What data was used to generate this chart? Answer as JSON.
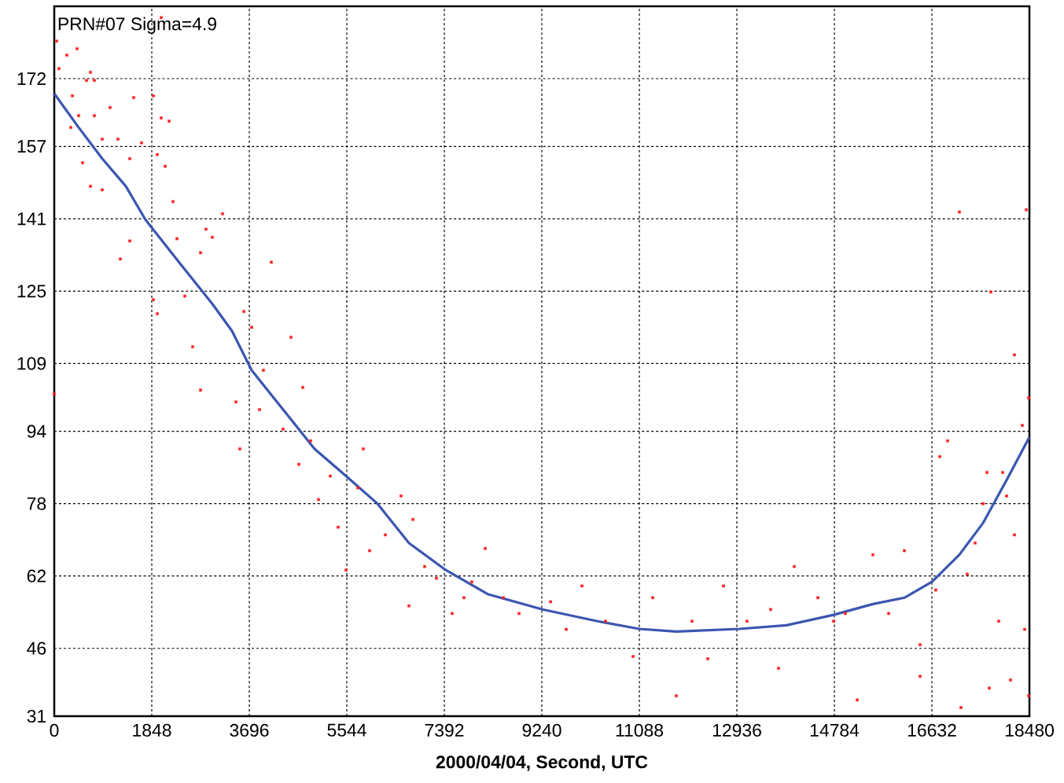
{
  "chart_data": {
    "type": "scatter",
    "xlabel": "2000/04/04, Second, UTC",
    "annotations": [
      "PRN#07  Sigma=4.9"
    ],
    "xlim": [
      0,
      18480
    ],
    "xticks": [
      0,
      1848,
      3696,
      5544,
      7392,
      9240,
      11088,
      12936,
      14784,
      16632,
      18480
    ],
    "ylim": [
      31,
      188
    ],
    "yticks": [
      31,
      46,
      62,
      78,
      94,
      109,
      125,
      141,
      157,
      172
    ],
    "grid": true,
    "series": [
      {
        "marker": "square",
        "color": "#ff2020",
        "x": [
          45,
          89,
          238,
          432,
          611,
          760,
          343,
          462,
          760,
          1058,
          1505,
          1878,
          2027,
          2176,
          1952,
          2101,
          537,
          686,
          909,
          1207,
          1431,
          1654,
          313,
          909,
          1252,
          1431,
          1878,
          1952,
          2250,
          2325,
          2474,
          2623,
          2772,
          2876,
          2995,
          3189,
          2772,
          3592,
          3741,
          4113,
          3964,
          4486,
          4709,
          3443,
          3517,
          3890,
          4337,
          4635,
          4858,
          5007,
          5231,
          5380,
          5529,
          5857,
          5753,
          5976,
          6274,
          6572,
          6796,
          6721,
          7019,
          7243,
          7541,
          7764,
          7913,
          8167,
          8510,
          8808,
          9404,
          9702,
          10000,
          10447,
          10969,
          11341,
          11788,
          12086,
          12384,
          12682,
          13129,
          13576,
          13725,
          14024,
          14471,
          14769,
          14992,
          15216,
          15514,
          15812,
          16110,
          16408,
          16706,
          16781,
          16930,
          17153,
          17302,
          17451,
          17675,
          17600,
          17749,
          17898,
          18047,
          18196,
          18345,
          18420,
          18196,
          18122,
          17973,
          17719,
          17183,
          16408,
          18465,
          18465,
          18390,
          0,
          2027,
          686
        ],
        "values": [
          180.3,
          174.2,
          177.2,
          178.6,
          171.6,
          171.6,
          168.2,
          163.8,
          163.8,
          165.6,
          167.8,
          168.2,
          163.3,
          162.6,
          155.2,
          152.6,
          153.4,
          148.2,
          147.4,
          158.6,
          154.3,
          157.8,
          161.2,
          158.6,
          132.1,
          136.1,
          123.1,
          120.0,
          144.8,
          136.6,
          123.9,
          112.7,
          133.5,
          138.7,
          136.9,
          142.1,
          103.1,
          120.5,
          117.0,
          131.4,
          107.5,
          114.8,
          103.7,
          100.5,
          90.1,
          98.8,
          94.5,
          86.7,
          91.9,
          78.9,
          84.1,
          72.8,
          63.3,
          90.1,
          81.5,
          67.6,
          71.1,
          79.7,
          74.5,
          55.4,
          64.1,
          61.5,
          53.7,
          57.2,
          60.7,
          68.1,
          57.2,
          53.7,
          56.3,
          50.2,
          59.8,
          52.0,
          44.2,
          57.2,
          35.5,
          52.0,
          43.7,
          59.8,
          52.0,
          54.6,
          41.6,
          64.1,
          57.2,
          52.0,
          53.7,
          34.6,
          66.7,
          53.7,
          67.6,
          46.8,
          58.9,
          88.4,
          91.9,
          142.5,
          62.4,
          69.3,
          84.9,
          78.0,
          124.8,
          52.0,
          79.7,
          71.1,
          95.3,
          143.0,
          110.9,
          39.0,
          84.9,
          37.2,
          32.9,
          39.8,
          35.5,
          101.4,
          50.2,
          102.3,
          185.5,
          173.4
        ]
      },
      {
        "type": "line",
        "marker": "none",
        "color": "#3a56b0",
        "x": [
          0,
          462,
          909,
          1356,
          1729,
          2399,
          2995,
          3368,
          3741,
          4337,
          4933,
          5529,
          6125,
          6721,
          7422,
          8212,
          9255,
          10298,
          11088,
          11788,
          12981,
          13875,
          14769,
          15514,
          16110,
          16632,
          17153,
          17600,
          18047,
          18480
        ],
        "values": [
          168.7,
          161.2,
          154.3,
          148.2,
          140.8,
          130.9,
          122.2,
          116.2,
          107.5,
          98.8,
          90.1,
          84.1,
          78.0,
          69.3,
          63.3,
          58.0,
          54.6,
          52.0,
          50.3,
          49.7,
          50.3,
          51.1,
          53.4,
          55.8,
          57.2,
          60.7,
          66.7,
          73.7,
          83.2,
          92.7
        ]
      }
    ]
  }
}
